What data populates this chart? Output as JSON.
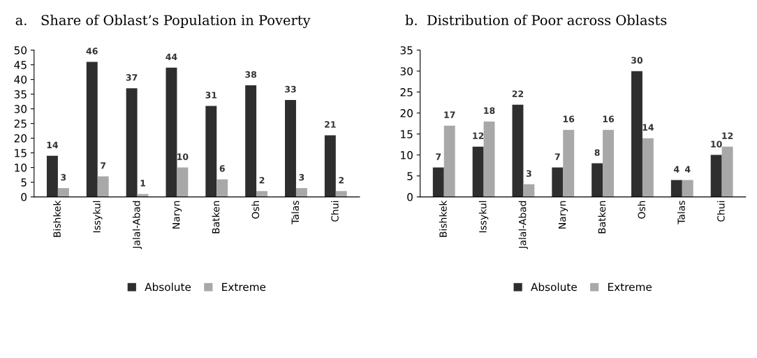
{
  "chart_data": [
    {
      "type": "bar",
      "title": "a.   Share of Oblast’s Population in Poverty",
      "categories": [
        "Bishkek",
        "Issykul",
        "Jalal-Abad",
        "Naryn",
        "Batken",
        "Osh",
        "Talas",
        "Chui"
      ],
      "series": [
        {
          "name": "Absolute",
          "color": "#2e2e2e",
          "values": [
            14,
            46,
            37,
            44,
            31,
            38,
            33,
            21
          ]
        },
        {
          "name": "Extreme",
          "color": "#a8a8a8",
          "values": [
            3,
            7,
            1,
            10,
            6,
            2,
            3,
            2
          ]
        }
      ],
      "ylim": [
        0,
        50
      ],
      "yticks": [
        0,
        5,
        10,
        15,
        20,
        25,
        30,
        35,
        40,
        45,
        50
      ],
      "data_labels": true,
      "legend": "bottom",
      "grid": false
    },
    {
      "type": "bar",
      "title": "b.  Distribution of Poor across Oblasts",
      "categories": [
        "Bishkek",
        "Issykul",
        "Jalal-Abad",
        "Naryn",
        "Batken",
        "Osh",
        "Talas",
        "Chui"
      ],
      "series": [
        {
          "name": "Absolute",
          "color": "#2e2e2e",
          "values": [
            7,
            12,
            22,
            7,
            8,
            30,
            4,
            10
          ]
        },
        {
          "name": "Extreme",
          "color": "#a8a8a8",
          "values": [
            17,
            18,
            3,
            16,
            16,
            14,
            4,
            12
          ]
        }
      ],
      "ylim": [
        0,
        35
      ],
      "yticks": [
        0,
        5,
        10,
        15,
        20,
        25,
        30,
        35
      ],
      "data_labels": true,
      "legend": "bottom",
      "grid": false
    }
  ]
}
